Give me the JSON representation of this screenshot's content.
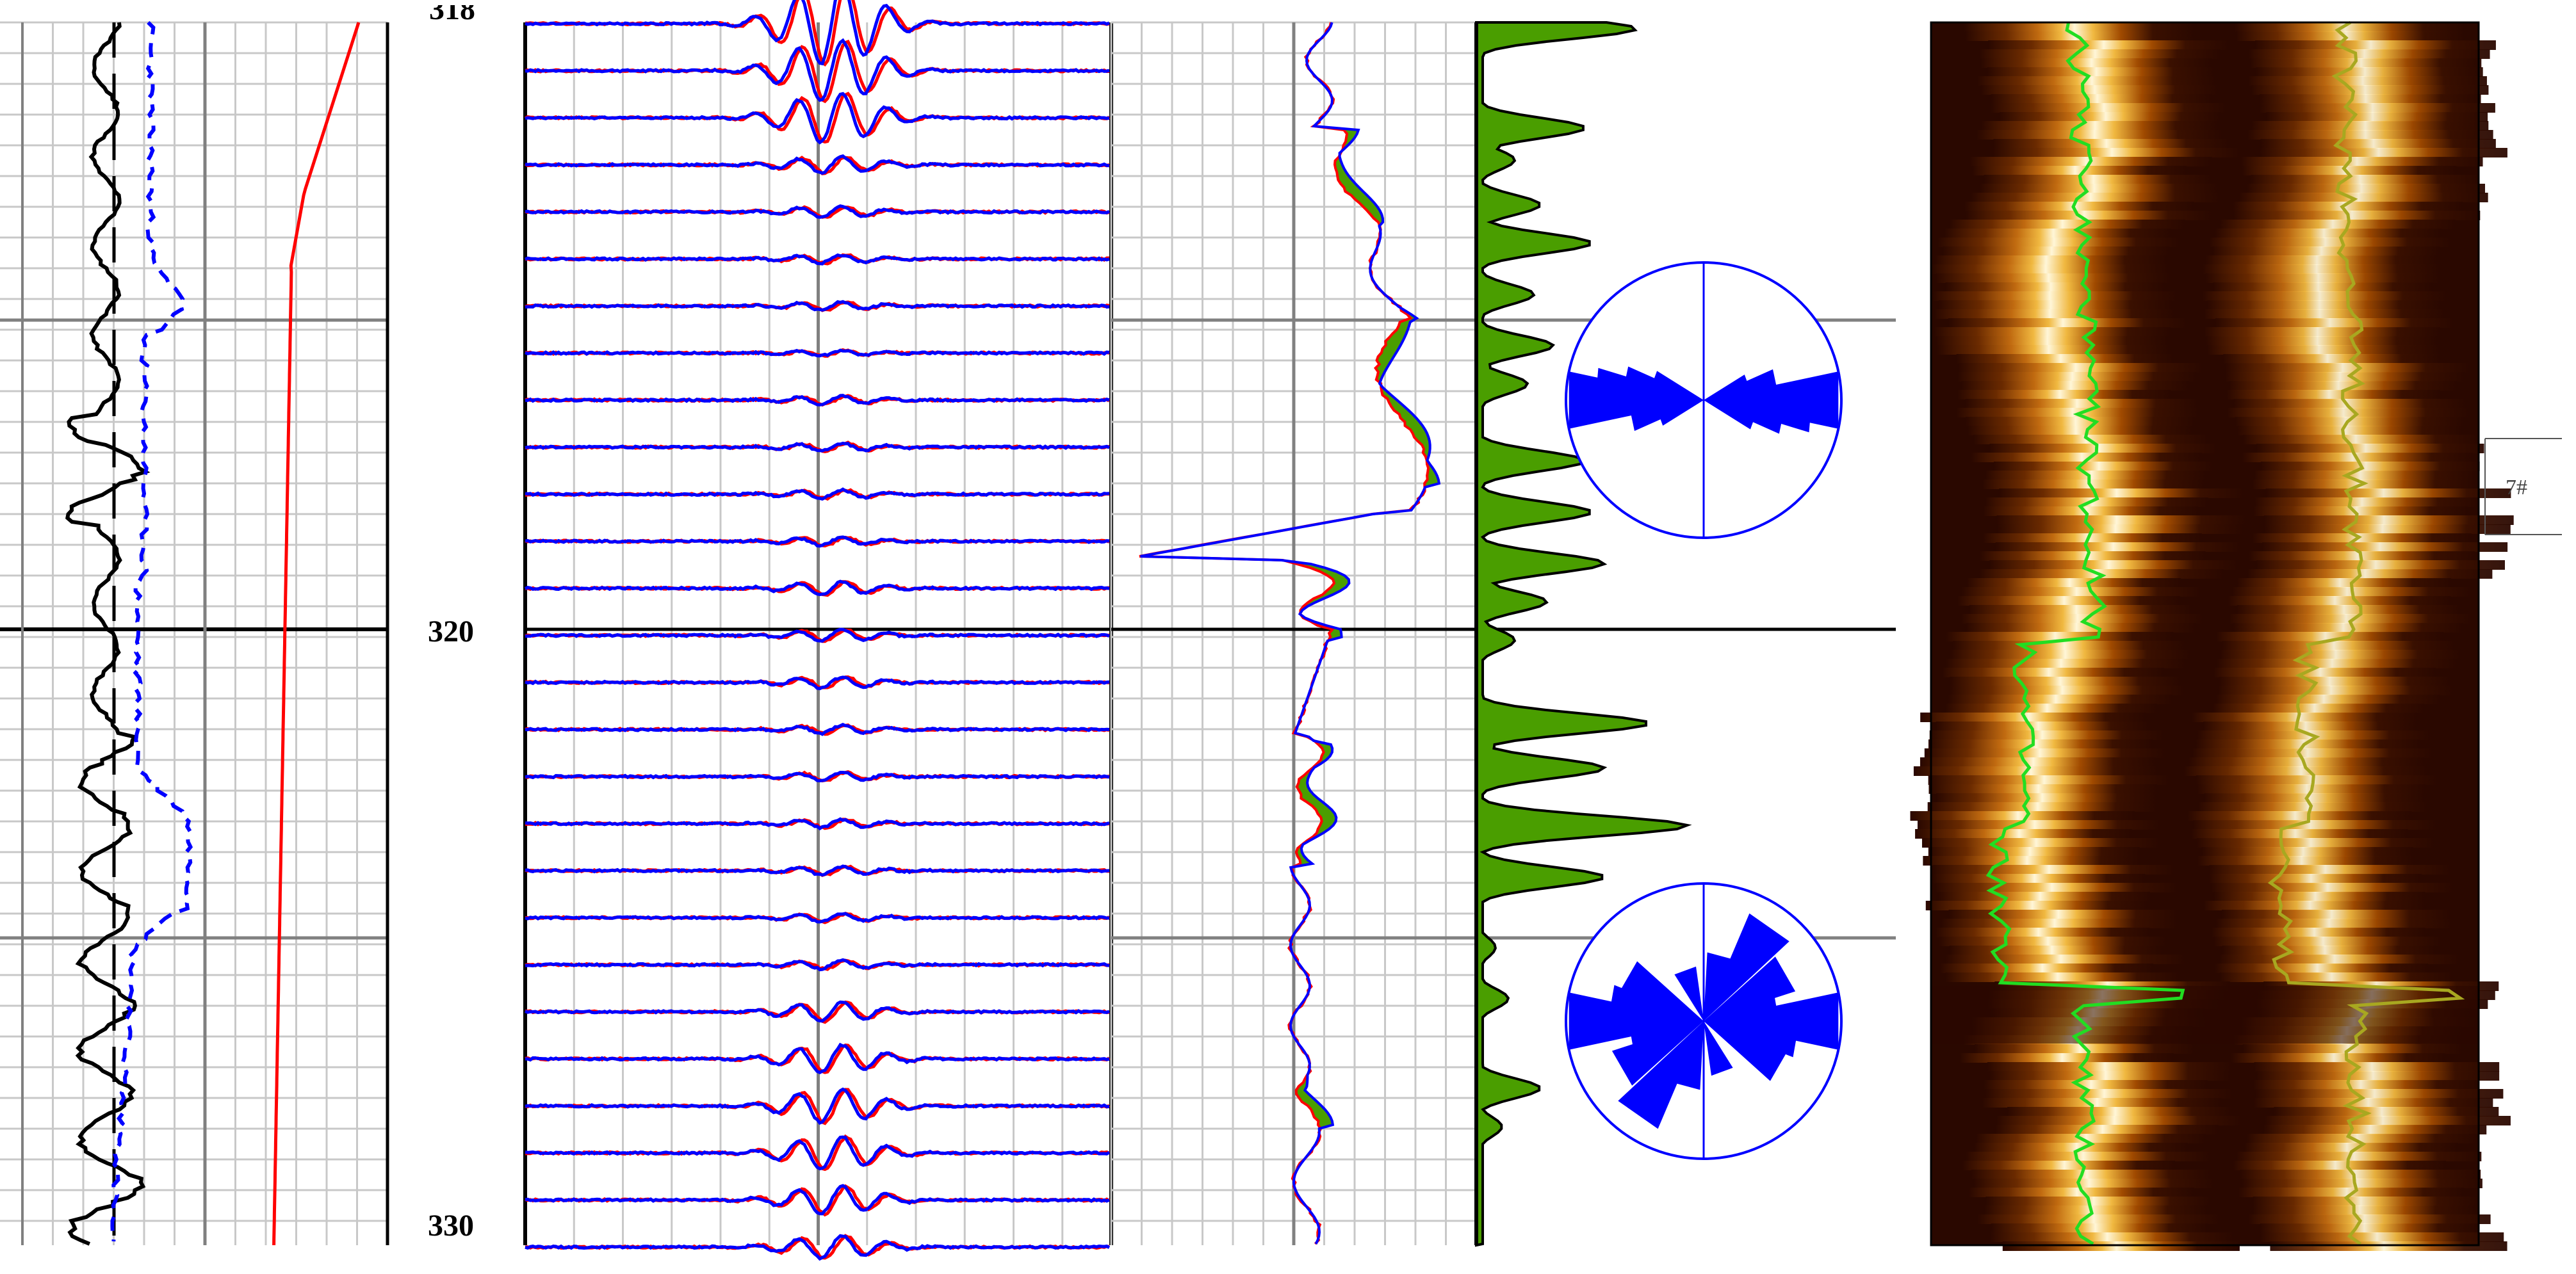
{
  "depth_axis": {
    "top_partial": "318",
    "mid": "320",
    "bottom": "330"
  },
  "zone_marker": {
    "label": "7#"
  },
  "colors": {
    "black_curve": "#000000",
    "blue_curve": "#0000ff",
    "red_curve": "#ff0000",
    "green_fill": "#4a9e00",
    "grid_minor": "#c8c8c8",
    "grid_major": "#808080",
    "bright_line": "#22dd22",
    "olive_line": "#a8a820",
    "image_dark": "#2a0800"
  },
  "chart_data": [
    {
      "type": "line",
      "track": "curves-1",
      "depth_range": [
        318,
        330
      ],
      "series": [
        {
          "style": "solid-black",
          "description_points": [
            [
              318,
              0.5
            ],
            [
              318.5,
              0.45
            ],
            [
              319,
              0.55
            ],
            [
              319.3,
              0.3
            ],
            [
              319.6,
              0.55
            ],
            [
              320,
              0.5
            ],
            [
              320.5,
              0.35
            ],
            [
              321,
              0.45
            ],
            [
              321.5,
              0.4
            ],
            [
              322,
              0.55
            ],
            [
              322.5,
              0.3
            ],
            [
              323,
              0.5
            ],
            [
              323.5,
              0.45
            ],
            [
              324,
              0.55
            ],
            [
              324.5,
              0.35
            ],
            [
              325,
              0.5
            ]
          ]
        },
        {
          "style": "dashed-blue",
          "description_points": [
            [
              318,
              0.62
            ],
            [
              318.8,
              0.62
            ],
            [
              319.5,
              0.85
            ],
            [
              320,
              0.62
            ],
            [
              321,
              0.62
            ],
            [
              322,
              0.75
            ],
            [
              322.5,
              0.78
            ],
            [
              323,
              0.6
            ],
            [
              324,
              0.55
            ],
            [
              325,
              0.5
            ]
          ]
        },
        {
          "style": "solid-red",
          "description_points": [
            [
              318,
              0.95
            ],
            [
              318.5,
              0.85
            ],
            [
              319,
              0.8
            ],
            [
              320,
              0.78
            ],
            [
              325,
              0.75
            ]
          ]
        }
      ]
    },
    {
      "type": "line",
      "track": "waveforms",
      "trace_count": 27,
      "series": [
        {
          "name": "",
          "style": "red"
        },
        {
          "name": "",
          "style": "blue"
        }
      ]
    },
    {
      "type": "area",
      "track": "overlay-curve",
      "depth_range": [
        318,
        330
      ]
    },
    {
      "type": "area",
      "track": "green-profile",
      "depth_range": [
        318,
        330
      ]
    },
    {
      "type": "pie",
      "track": "rose-diagrams",
      "roses": [
        {
          "center_depth": 318.6,
          "petals": [
            [
              0,
              0.9
            ],
            [
              15,
              0.5
            ],
            [
              165,
              0.5
            ],
            [
              180,
              0.9
            ],
            [
              195,
              0.5
            ],
            [
              345,
              0.4
            ]
          ]
        },
        {
          "center_depth": 327.2,
          "petals": [
            [
              0,
              0.9
            ],
            [
              30,
              0.7
            ],
            [
              150,
              0.6
            ],
            [
              180,
              0.9
            ],
            [
              210,
              0.7
            ],
            [
              330,
              0.5
            ],
            [
              60,
              0.3
            ],
            [
              240,
              0.3
            ]
          ]
        }
      ]
    },
    {
      "type": "heatmap",
      "track": "image-log",
      "depth_range": [
        318,
        330
      ]
    }
  ]
}
